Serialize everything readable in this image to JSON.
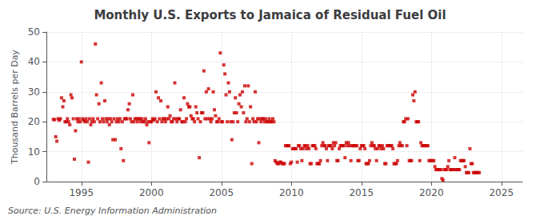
{
  "chart_data": {
    "type": "scatter",
    "title": "Monthly U.S. Exports to Jamaica of Residual Fuel Oil",
    "ylabel": "Thousand Barrels per Day",
    "annotations": [
      "Source: U.S. Energy Information Administration"
    ],
    "color": "#cc0000",
    "marker": "square",
    "grid": true,
    "xlim": [
      1992.5,
      2026.5
    ],
    "xticks": [
      1995,
      2000,
      2005,
      2010,
      2015,
      2020,
      2025
    ],
    "ylim": [
      0,
      50
    ],
    "yticks": [
      0,
      10,
      20,
      30,
      40,
      50
    ],
    "x": [
      1993.0,
      1993.08,
      1993.17,
      1993.25,
      1993.33,
      1993.42,
      1993.5,
      1993.58,
      1993.67,
      1993.75,
      1993.83,
      1993.92,
      1994.0,
      1994.08,
      1994.17,
      1994.25,
      1994.33,
      1994.42,
      1994.5,
      1994.58,
      1994.67,
      1994.75,
      1994.83,
      1994.92,
      1995.0,
      1995.08,
      1995.17,
      1995.25,
      1995.33,
      1995.42,
      1995.5,
      1995.58,
      1995.67,
      1995.75,
      1995.83,
      1995.92,
      1996.0,
      1996.08,
      1996.17,
      1996.25,
      1996.33,
      1996.42,
      1996.5,
      1996.58,
      1996.67,
      1996.75,
      1996.83,
      1996.92,
      1997.0,
      1997.08,
      1997.17,
      1997.25,
      1997.33,
      1997.42,
      1997.5,
      1997.58,
      1997.67,
      1997.75,
      1997.83,
      1997.92,
      1998.0,
      1998.08,
      1998.17,
      1998.25,
      1998.33,
      1998.42,
      1998.5,
      1998.58,
      1998.67,
      1998.75,
      1998.83,
      1998.92,
      1999.0,
      1999.08,
      1999.17,
      1999.25,
      1999.33,
      1999.42,
      1999.5,
      1999.58,
      1999.67,
      1999.75,
      1999.83,
      1999.92,
      2000.0,
      2000.08,
      2000.17,
      2000.25,
      2000.33,
      2000.42,
      2000.5,
      2000.58,
      2000.67,
      2000.75,
      2000.83,
      2000.92,
      2001.0,
      2001.08,
      2001.17,
      2001.25,
      2001.33,
      2001.42,
      2001.5,
      2001.58,
      2001.67,
      2001.75,
      2001.83,
      2001.92,
      2002.0,
      2002.08,
      2002.17,
      2002.25,
      2002.33,
      2002.42,
      2002.5,
      2002.58,
      2002.67,
      2002.75,
      2002.83,
      2002.92,
      2003.0,
      2003.08,
      2003.17,
      2003.25,
      2003.33,
      2003.42,
      2003.5,
      2003.58,
      2003.67,
      2003.75,
      2003.83,
      2003.92,
      2004.0,
      2004.08,
      2004.17,
      2004.25,
      2004.33,
      2004.42,
      2004.5,
      2004.58,
      2004.67,
      2004.75,
      2004.83,
      2004.92,
      2005.0,
      2005.08,
      2005.17,
      2005.25,
      2005.33,
      2005.42,
      2005.5,
      2005.58,
      2005.67,
      2005.75,
      2005.83,
      2005.92,
      2006.0,
      2006.08,
      2006.17,
      2006.25,
      2006.33,
      2006.42,
      2006.5,
      2006.58,
      2006.67,
      2006.75,
      2006.83,
      2006.92,
      2007.0,
      2007.08,
      2007.17,
      2007.25,
      2007.33,
      2007.42,
      2007.5,
      2007.58,
      2007.67,
      2007.75,
      2007.83,
      2007.92,
      2008.0,
      2008.08,
      2008.17,
      2008.25,
      2008.33,
      2008.42,
      2008.5,
      2008.58,
      2008.67,
      2008.75,
      2008.83,
      2008.92,
      2009.0,
      2009.08,
      2009.17,
      2009.25,
      2009.33,
      2009.42,
      2009.5,
      2009.58,
      2009.67,
      2009.75,
      2009.83,
      2009.92,
      2010.0,
      2010.08,
      2010.17,
      2010.25,
      2010.33,
      2010.42,
      2010.5,
      2010.58,
      2010.67,
      2010.75,
      2010.83,
      2010.92,
      2011.0,
      2011.08,
      2011.17,
      2011.25,
      2011.33,
      2011.42,
      2011.5,
      2011.58,
      2011.67,
      2011.75,
      2011.83,
      2011.92,
      2012.0,
      2012.08,
      2012.17,
      2012.25,
      2012.33,
      2012.42,
      2012.5,
      2012.58,
      2012.67,
      2012.75,
      2012.83,
      2012.92,
      2013.0,
      2013.08,
      2013.17,
      2013.25,
      2013.33,
      2013.42,
      2013.5,
      2013.58,
      2013.67,
      2013.75,
      2013.83,
      2013.92,
      2014.0,
      2014.08,
      2014.17,
      2014.25,
      2014.33,
      2014.42,
      2014.5,
      2014.58,
      2014.67,
      2014.75,
      2014.83,
      2014.92,
      2015.0,
      2015.08,
      2015.17,
      2015.25,
      2015.33,
      2015.42,
      2015.5,
      2015.58,
      2015.67,
      2015.75,
      2015.83,
      2015.92,
      2016.0,
      2016.08,
      2016.17,
      2016.25,
      2016.33,
      2016.42,
      2016.5,
      2016.58,
      2016.67,
      2016.75,
      2016.83,
      2016.92,
      2017.0,
      2017.08,
      2017.17,
      2017.25,
      2017.33,
      2017.42,
      2017.5,
      2017.58,
      2017.67,
      2017.75,
      2017.83,
      2017.92,
      2018.0,
      2018.08,
      2018.17,
      2018.25,
      2018.33,
      2018.42,
      2018.5,
      2018.58,
      2018.67,
      2018.75,
      2018.83,
      2018.92,
      2019.0,
      2019.08,
      2019.17,
      2019.25,
      2019.33,
      2019.42,
      2019.5,
      2019.58,
      2019.67,
      2019.75,
      2019.83,
      2019.92,
      2020.0,
      2020.08,
      2020.17,
      2020.25,
      2020.33,
      2020.42,
      2020.5,
      2020.58,
      2020.67,
      2020.75,
      2020.83,
      2020.92,
      2021.0,
      2021.08,
      2021.17,
      2021.25,
      2021.33,
      2021.42,
      2021.5,
      2021.58,
      2021.67,
      2021.75,
      2021.83,
      2021.92,
      2022.0,
      2022.08,
      2022.17,
      2022.25,
      2022.33,
      2022.42,
      2022.5,
      2022.58,
      2022.67,
      2022.75,
      2022.83,
      2022.92,
      2023.0,
      2023.08,
      2023.17,
      2023.25,
      2023.33,
      2023.42
    ],
    "values": [
      20.8,
      20.7,
      15.0,
      13.5,
      21.0,
      20.5,
      21.0,
      28.0,
      25.0,
      27.0,
      20.0,
      20.0,
      21.0,
      20.0,
      19.0,
      29.0,
      28.0,
      21.0,
      7.5,
      17.0,
      21.0,
      20.0,
      21.0,
      20.0,
      40.0,
      21.0,
      20.5,
      20.0,
      21.0,
      20.0,
      6.5,
      21.0,
      19.0,
      20.0,
      21.0,
      20.0,
      46.0,
      29.0,
      21.0,
      26.0,
      20.0,
      33.0,
      21.0,
      20.0,
      27.0,
      21.0,
      20.0,
      21.0,
      19.0,
      21.0,
      20.0,
      14.0,
      21.0,
      14.0,
      20.0,
      21.0,
      20.0,
      21.0,
      11.0,
      20.0,
      7.0,
      21.0,
      21.0,
      21.0,
      24.0,
      26.0,
      21.0,
      20.0,
      29.0,
      20.0,
      21.0,
      21.0,
      20.0,
      21.0,
      21.0,
      20.0,
      21.0,
      20.0,
      20.0,
      21.0,
      19.0,
      20.0,
      13.0,
      20.0,
      20.0,
      21.0,
      20.5,
      21.0,
      30.0,
      20.0,
      28.0,
      21.0,
      27.0,
      20.0,
      21.0,
      21.0,
      20.0,
      21.0,
      25.0,
      21.0,
      22.0,
      20.0,
      20.0,
      21.0,
      33.0,
      21.0,
      20.0,
      21.0,
      21.0,
      24.0,
      20.0,
      20.0,
      28.0,
      20.0,
      21.0,
      26.0,
      25.0,
      25.0,
      22.0,
      21.0,
      21.0,
      20.0,
      25.0,
      23.0,
      21.0,
      8.0,
      20.0,
      23.0,
      23.0,
      37.0,
      21.0,
      30.0,
      21.0,
      31.0,
      21.0,
      20.0,
      21.0,
      30.0,
      24.0,
      22.0,
      20.0,
      20.0,
      21.0,
      43.0,
      20.0,
      20.0,
      39.0,
      36.0,
      29.0,
      20.0,
      33.0,
      30.0,
      20.0,
      14.0,
      20.0,
      23.0,
      28.0,
      23.0,
      20.0,
      26.0,
      29.0,
      25.0,
      30.0,
      23.0,
      32.0,
      20.0,
      21.0,
      32.0,
      20.0,
      25.0,
      6.0,
      21.0,
      20.0,
      30.0,
      20.0,
      21.0,
      13.0,
      21.0,
      20.0,
      21.0,
      21.0,
      20.0,
      21.0,
      20.0,
      20.0,
      21.0,
      20.0,
      20.0,
      21.0,
      20.0,
      7.0,
      6.5,
      6.0,
      6.0,
      6.5,
      6.5,
      6.0,
      6.0,
      6.0,
      12.0,
      12.0,
      12.0,
      12.0,
      6.0,
      6.5,
      11.0,
      11.0,
      11.0,
      11.0,
      6.5,
      12.0,
      12.0,
      11.0,
      7.0,
      11.0,
      12.0,
      12.0,
      11.0,
      12.0,
      11.0,
      6.0,
      6.0,
      12.0,
      12.0,
      12.0,
      11.0,
      6.0,
      6.0,
      6.0,
      7.0,
      12.0,
      13.0,
      12.0,
      12.0,
      11.0,
      7.0,
      12.0,
      12.0,
      12.0,
      11.0,
      13.0,
      12.0,
      13.0,
      7.0,
      7.0,
      11.0,
      12.0,
      12.0,
      12.0,
      12.0,
      8.0,
      13.0,
      12.0,
      13.0,
      12.0,
      7.0,
      12.0,
      12.0,
      12.0,
      12.0,
      12.0,
      7.0,
      7.0,
      11.0,
      12.0,
      12.0,
      12.0,
      11.0,
      6.0,
      6.0,
      6.0,
      7.0,
      12.0,
      13.0,
      12.0,
      12.0,
      11.0,
      7.0,
      11.0,
      12.0,
      12.0,
      11.0,
      12.0,
      11.0,
      6.0,
      6.0,
      12.0,
      12.0,
      12.0,
      12.0,
      12.0,
      11.0,
      6.0,
      6.0,
      6.0,
      7.0,
      12.0,
      13.0,
      12.0,
      12.0,
      20.0,
      20.0,
      21.0,
      12.0,
      21.0,
      7.0,
      7.0,
      7.0,
      29.0,
      27.0,
      30.0,
      20.0,
      20.0,
      20.0,
      7.0,
      13.0,
      12.0,
      12.0,
      12.0,
      12.0,
      12.0,
      12.0,
      7.0,
      7.0,
      7.0,
      7.0,
      7.0,
      5.0,
      4.0,
      4.0,
      4.0,
      4.0,
      4.0,
      1.0,
      0.5,
      4.0,
      4.0,
      4.0,
      5.0,
      7.0,
      4.0,
      4.0,
      4.0,
      4.0,
      8.0,
      4.0,
      4.0,
      4.0,
      4.0,
      7.0,
      7.0,
      7.0,
      7.0,
      5.0,
      3.0,
      3.0,
      3.0,
      11.0,
      6.0,
      6.0,
      3.0,
      3.0,
      3.0,
      3.0,
      3.0,
      3.0
    ]
  }
}
